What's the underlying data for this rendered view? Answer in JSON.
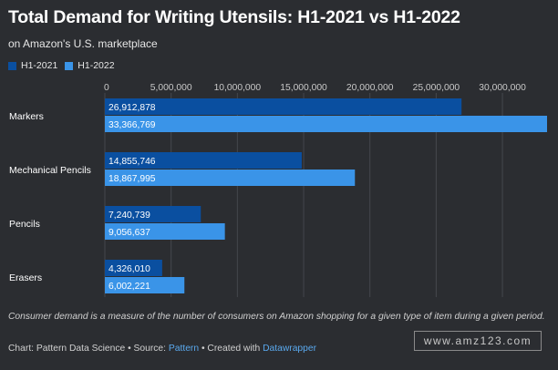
{
  "title": "Total Demand for Writing Utensils: H1-2021 vs H1-2022",
  "subtitle": "on Amazon's U.S. marketplace",
  "note": "Consumer demand is a measure of the number of consumers on Amazon shopping for a given type of item during a given period.",
  "credits": {
    "prefix": "Chart: Pattern Data Science • Source: ",
    "source": "Pattern",
    "middle": " • Created with ",
    "tool": "Datawrapper"
  },
  "watermark": "www.amz123.com",
  "colors": {
    "background": "#2b2d31",
    "h1_2021": "#0a4fa0",
    "h1_2022": "#3a94e8",
    "link": "#5aa9ee",
    "axis_label": "#c8c8c8"
  },
  "chart_data": {
    "type": "bar",
    "orientation": "horizontal",
    "categories": [
      "Markers",
      "Mechanical Pencils",
      "Pencils",
      "Erasers"
    ],
    "series": [
      {
        "name": "H1-2021",
        "values": [
          26912878,
          14855746,
          7240739,
          4326010
        ],
        "labels": [
          "26,912,878",
          "14,855,746",
          "7,240,739",
          "4,326,010"
        ]
      },
      {
        "name": "H1-2022",
        "values": [
          33366769,
          18867995,
          9056637,
          6002221
        ],
        "labels": [
          "33,366,769",
          "18,867,995",
          "9,056,637",
          "6,002,221"
        ]
      }
    ],
    "xticks": [
      0,
      5000000,
      10000000,
      15000000,
      20000000,
      25000000,
      30000000
    ],
    "xtick_labels": [
      "0",
      "5,000,000",
      "10,000,000",
      "15,000,000",
      "20,000,000",
      "25,000,000",
      "30,000,000"
    ],
    "xlim": [
      0,
      33366769
    ],
    "grid": true,
    "legend_position": "top-left"
  }
}
